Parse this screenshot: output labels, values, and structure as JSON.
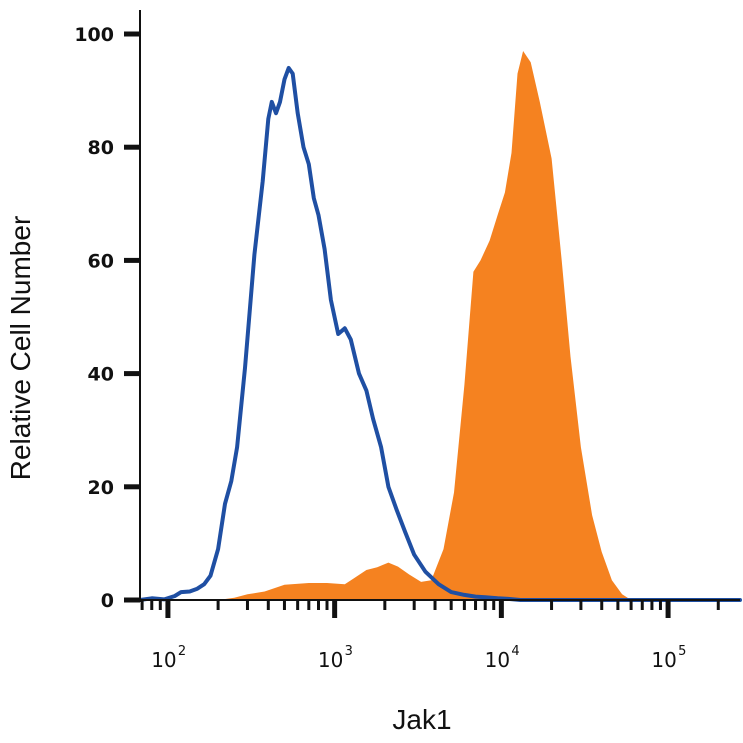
{
  "chart_data": {
    "type": "area",
    "xlabel": "Jak1",
    "ylabel": "Relative Cell Number",
    "x_scale": "log",
    "xlim": [
      68,
      270000
    ],
    "ylim": [
      0,
      100
    ],
    "yticks": [
      0,
      20,
      40,
      60,
      80,
      100
    ],
    "xticks": [
      {
        "value": 100,
        "base": "10",
        "exp": "2"
      },
      {
        "value": 1000,
        "base": "10",
        "exp": "3"
      },
      {
        "value": 10000,
        "base": "10",
        "exp": "4"
      },
      {
        "value": 100000,
        "base": "10",
        "exp": "5"
      }
    ],
    "grid": false,
    "series": [
      {
        "style": "filled",
        "color": "#F58220",
        "points": [
          [
            68,
            0
          ],
          [
            150,
            0
          ],
          [
            200,
            0
          ],
          [
            250,
            0.4
          ],
          [
            300,
            1
          ],
          [
            380,
            1.5
          ],
          [
            500,
            2.7
          ],
          [
            700,
            3
          ],
          [
            900,
            3
          ],
          [
            1150,
            2.8
          ],
          [
            1300,
            3.8
          ],
          [
            1550,
            5.3
          ],
          [
            1800,
            5.8
          ],
          [
            2100,
            6.6
          ],
          [
            2400,
            5.9
          ],
          [
            2800,
            4.5
          ],
          [
            3300,
            3.2
          ],
          [
            3800,
            3.5
          ],
          [
            4500,
            9
          ],
          [
            5200,
            19
          ],
          [
            6000,
            38
          ],
          [
            6800,
            58
          ],
          [
            7500,
            60
          ],
          [
            8500,
            63.5
          ],
          [
            9500,
            68
          ],
          [
            10500,
            72
          ],
          [
            11500,
            79
          ],
          [
            12500,
            93
          ],
          [
            13500,
            97
          ],
          [
            15000,
            95
          ],
          [
            17000,
            88
          ],
          [
            20000,
            78
          ],
          [
            23000,
            60
          ],
          [
            26000,
            43
          ],
          [
            30000,
            27
          ],
          [
            35000,
            15
          ],
          [
            40000,
            8.5
          ],
          [
            46000,
            3.5
          ],
          [
            53000,
            1
          ],
          [
            60000,
            0
          ],
          [
            270000,
            0
          ]
        ]
      },
      {
        "style": "line",
        "color": "#1F4FA3",
        "points": [
          [
            68,
            0
          ],
          [
            80,
            0.3
          ],
          [
            95,
            0.1
          ],
          [
            110,
            0.7
          ],
          [
            120,
            1.4
          ],
          [
            135,
            1.5
          ],
          [
            150,
            2
          ],
          [
            165,
            2.8
          ],
          [
            180,
            4.3
          ],
          [
            200,
            9
          ],
          [
            220,
            17
          ],
          [
            240,
            21
          ],
          [
            260,
            27
          ],
          [
            290,
            41
          ],
          [
            330,
            61
          ],
          [
            370,
            74
          ],
          [
            400,
            85
          ],
          [
            420,
            88
          ],
          [
            445,
            86
          ],
          [
            470,
            88
          ],
          [
            500,
            92
          ],
          [
            530,
            94
          ],
          [
            560,
            93
          ],
          [
            600,
            86
          ],
          [
            650,
            80
          ],
          [
            700,
            77
          ],
          [
            750,
            71
          ],
          [
            800,
            68
          ],
          [
            870,
            62
          ],
          [
            950,
            53
          ],
          [
            1050,
            47
          ],
          [
            1150,
            48
          ],
          [
            1250,
            46
          ],
          [
            1400,
            40
          ],
          [
            1550,
            37
          ],
          [
            1700,
            32
          ],
          [
            1900,
            27
          ],
          [
            2100,
            20
          ],
          [
            2350,
            16
          ],
          [
            2650,
            12
          ],
          [
            3000,
            8
          ],
          [
            3500,
            5
          ],
          [
            4200,
            2.8
          ],
          [
            5000,
            1.4
          ],
          [
            6000,
            0.9
          ],
          [
            7000,
            0.6
          ],
          [
            8000,
            0.5
          ],
          [
            9500,
            0.3
          ],
          [
            11000,
            0.2
          ],
          [
            13000,
            0
          ],
          [
            270000,
            0
          ]
        ]
      }
    ]
  }
}
